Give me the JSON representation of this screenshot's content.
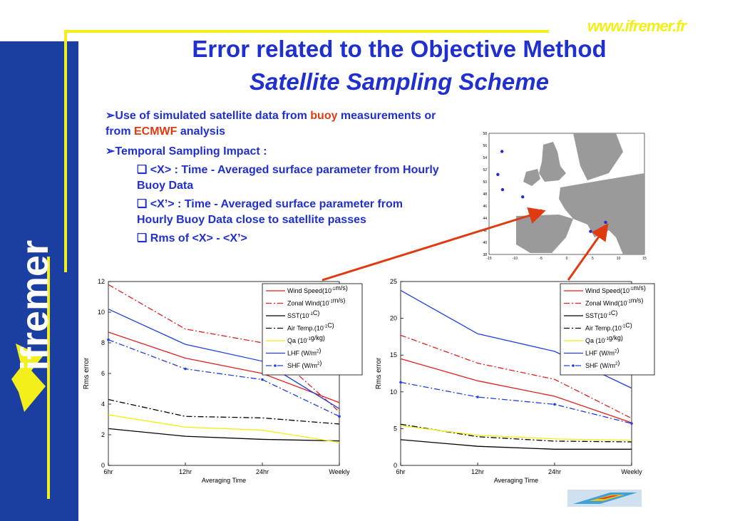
{
  "brand": {
    "url": "www.ifremer.fr",
    "logo_text": "ifremer"
  },
  "title": {
    "line1": "Error related to the Objective Method",
    "line2": "Satellite Sampling Scheme"
  },
  "bullets": {
    "b1_pre": "Use of simulated satellite data from ",
    "b1_buoy": "buoy",
    "b1_mid": " measurements or from ",
    "b1_ecmwf": "ECMWF",
    "b1_post": " analysis",
    "b2": "Temporal Sampling Impact :",
    "sub1": "<X> : Time - Averaged surface parameter from Hourly Buoy Data",
    "sub2": "<X’> : Time - Averaged surface parameter from Hourly Buoy Data close to satellite passes",
    "sub3": "Rms of <X> - <X’>"
  },
  "map": {
    "y_ticks": [
      "58",
      "56",
      "54",
      "52",
      "50",
      "48",
      "46",
      "44",
      "42",
      "40",
      "38"
    ],
    "x_ticks": [
      "-15",
      "-10",
      "-5",
      "0",
      "5",
      "10",
      "15"
    ],
    "buoys": [
      [
        -12.5,
        55
      ],
      [
        -13.3,
        51.2
      ],
      [
        -12.4,
        48.7
      ],
      [
        -8.5,
        47.5
      ],
      [
        -5,
        45.2
      ],
      [
        4.6,
        41.8
      ],
      [
        7.5,
        43.3
      ]
    ]
  },
  "colors": {
    "accent": "#1f2fd0",
    "sidebar": "#1b3fa0",
    "yellow_line": "#f2ef1a",
    "highlight": "#e03a10"
  },
  "chart_data": [
    {
      "type": "line",
      "categories": [
        "6hr",
        "12hr",
        "24hr",
        "Weekly"
      ],
      "xlabel": "Averaging Time",
      "ylabel": "Rms error",
      "ylim": [
        0,
        12
      ],
      "yticks": [
        "0",
        "2",
        "4",
        "6",
        "8",
        "10",
        "12"
      ],
      "legend_position": "top-right",
      "series": [
        {
          "name": "Wind Speed(10-1m/s)",
          "values": [
            8.7,
            7.0,
            6.0,
            4.1
          ]
        },
        {
          "name": "Zonal Wind(10-1m/s)",
          "values": [
            11.8,
            8.9,
            8.0,
            3.5
          ]
        },
        {
          "name": "SST(10-1C)",
          "values": [
            2.4,
            1.9,
            1.7,
            1.6
          ]
        },
        {
          "name": "Air Temp.(10-1C)",
          "values": [
            4.3,
            3.2,
            3.1,
            2.7
          ]
        },
        {
          "name": "Qa (10-1g/kg)",
          "values": [
            3.3,
            2.5,
            2.3,
            1.5
          ]
        },
        {
          "name": "LHF (W/m2)",
          "values": [
            10.2,
            7.9,
            6.8,
            3.7
          ]
        },
        {
          "name": "SHF (W/m2)",
          "values": [
            8.2,
            6.3,
            5.6,
            3.2
          ]
        }
      ]
    },
    {
      "type": "line",
      "categories": [
        "6hr",
        "12hr",
        "24hr",
        "Weekly"
      ],
      "xlabel": "Averaging Time",
      "ylabel": "Rms error",
      "ylim": [
        0,
        25
      ],
      "yticks": [
        "0",
        "5",
        "10",
        "15",
        "20",
        "25"
      ],
      "legend_position": "top-right",
      "series": [
        {
          "name": "Wind Speed(10-1m/s)",
          "values": [
            14.5,
            11.5,
            9.4,
            5.8
          ]
        },
        {
          "name": "Zonal Wind(10-1m/s)",
          "values": [
            17.7,
            13.9,
            11.7,
            6.4
          ]
        },
        {
          "name": "SST(10-1C)",
          "values": [
            3.5,
            2.6,
            2.2,
            2.2
          ]
        },
        {
          "name": "Air Temp.(10-1C)",
          "values": [
            5.6,
            3.9,
            3.3,
            3.2
          ]
        },
        {
          "name": "Qa (10-1g/kg)",
          "values": [
            5.4,
            4.1,
            3.6,
            3.4
          ]
        },
        {
          "name": "LHF (W/m2)",
          "values": [
            23.8,
            17.9,
            15.5,
            10.5
          ]
        },
        {
          "name": "SHF (W/m2)",
          "values": [
            11.3,
            9.3,
            8.3,
            5.7
          ]
        }
      ]
    }
  ]
}
